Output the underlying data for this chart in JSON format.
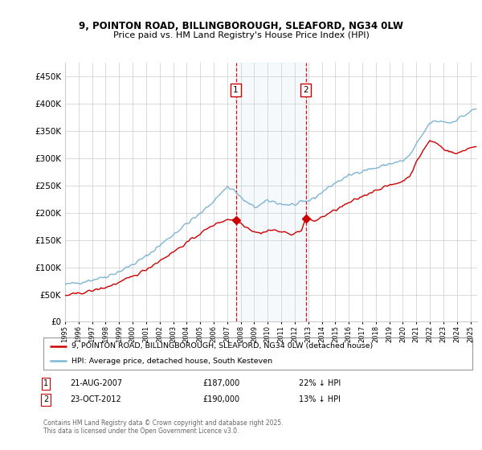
{
  "title_line1": "9, POINTON ROAD, BILLINGBOROUGH, SLEAFORD, NG34 0LW",
  "title_line2": "Price paid vs. HM Land Registry's House Price Index (HPI)",
  "legend_line1": "9, POINTON ROAD, BILLINGBOROUGH, SLEAFORD, NG34 0LW (detached house)",
  "legend_line2": "HPI: Average price, detached house, South Kesteven",
  "footer": "Contains HM Land Registry data © Crown copyright and database right 2025.\nThis data is licensed under the Open Government Licence v3.0.",
  "hpi_color": "#7EB6D4",
  "price_color": "#CC0000",
  "annotation1_date": "21-AUG-2007",
  "annotation1_price": "£187,000",
  "annotation1_hpi": "22% ↓ HPI",
  "annotation2_date": "23-OCT-2012",
  "annotation2_price": "£190,000",
  "annotation2_hpi": "13% ↓ HPI",
  "sale1_x": 2007.64,
  "sale1_y": 187000,
  "sale2_x": 2012.81,
  "sale2_y": 190000,
  "ylim": [
    0,
    475000
  ],
  "xlim_start": 1995.0,
  "xlim_end": 2025.5,
  "shade_x1": 2007.64,
  "shade_x2": 2012.81,
  "hpi_anchors_x": [
    1995,
    1996,
    1997,
    1998,
    1999,
    2000,
    2001,
    2002,
    2003,
    2004,
    2005,
    2006,
    2007,
    2007.5,
    2008,
    2008.5,
    2009,
    2009.5,
    2010,
    2010.5,
    2011,
    2011.5,
    2012,
    2012.5,
    2013,
    2013.5,
    2014,
    2015,
    2016,
    2017,
    2018,
    2019,
    2020,
    2020.5,
    2021,
    2021.5,
    2022,
    2022.5,
    2023,
    2023.5,
    2024,
    2024.5,
    2025.3
  ],
  "hpi_anchors_y": [
    68000,
    72000,
    77000,
    83000,
    92000,
    105000,
    120000,
    140000,
    160000,
    180000,
    198000,
    222000,
    248000,
    242000,
    228000,
    218000,
    210000,
    215000,
    222000,
    220000,
    216000,
    215000,
    215000,
    218000,
    222000,
    228000,
    238000,
    255000,
    268000,
    278000,
    282000,
    290000,
    295000,
    305000,
    325000,
    345000,
    365000,
    368000,
    368000,
    365000,
    372000,
    378000,
    390000
  ],
  "price_anchors_x": [
    1995,
    1996,
    1997,
    1998,
    1999,
    2000,
    2001,
    2002,
    2003,
    2004,
    2005,
    2006,
    2007.0,
    2007.64,
    2008.2,
    2008.8,
    2009.5,
    2010.0,
    2010.5,
    2011.0,
    2011.5,
    2012.0,
    2012.5,
    2012.81,
    2013.0,
    2013.5,
    2014,
    2015,
    2016,
    2017,
    2018,
    2019,
    2020,
    2020.5,
    2021,
    2021.5,
    2022,
    2022.5,
    2023,
    2023.5,
    2024,
    2024.5,
    2025.3
  ],
  "price_anchors_y": [
    48000,
    52000,
    57000,
    63000,
    72000,
    83000,
    96000,
    112000,
    128000,
    145000,
    162000,
    178000,
    188000,
    187000,
    178000,
    168000,
    162000,
    168000,
    168000,
    165000,
    162000,
    162000,
    168000,
    190000,
    188000,
    185000,
    192000,
    205000,
    218000,
    230000,
    242000,
    250000,
    258000,
    268000,
    292000,
    315000,
    332000,
    328000,
    318000,
    312000,
    308000,
    315000,
    322000
  ]
}
